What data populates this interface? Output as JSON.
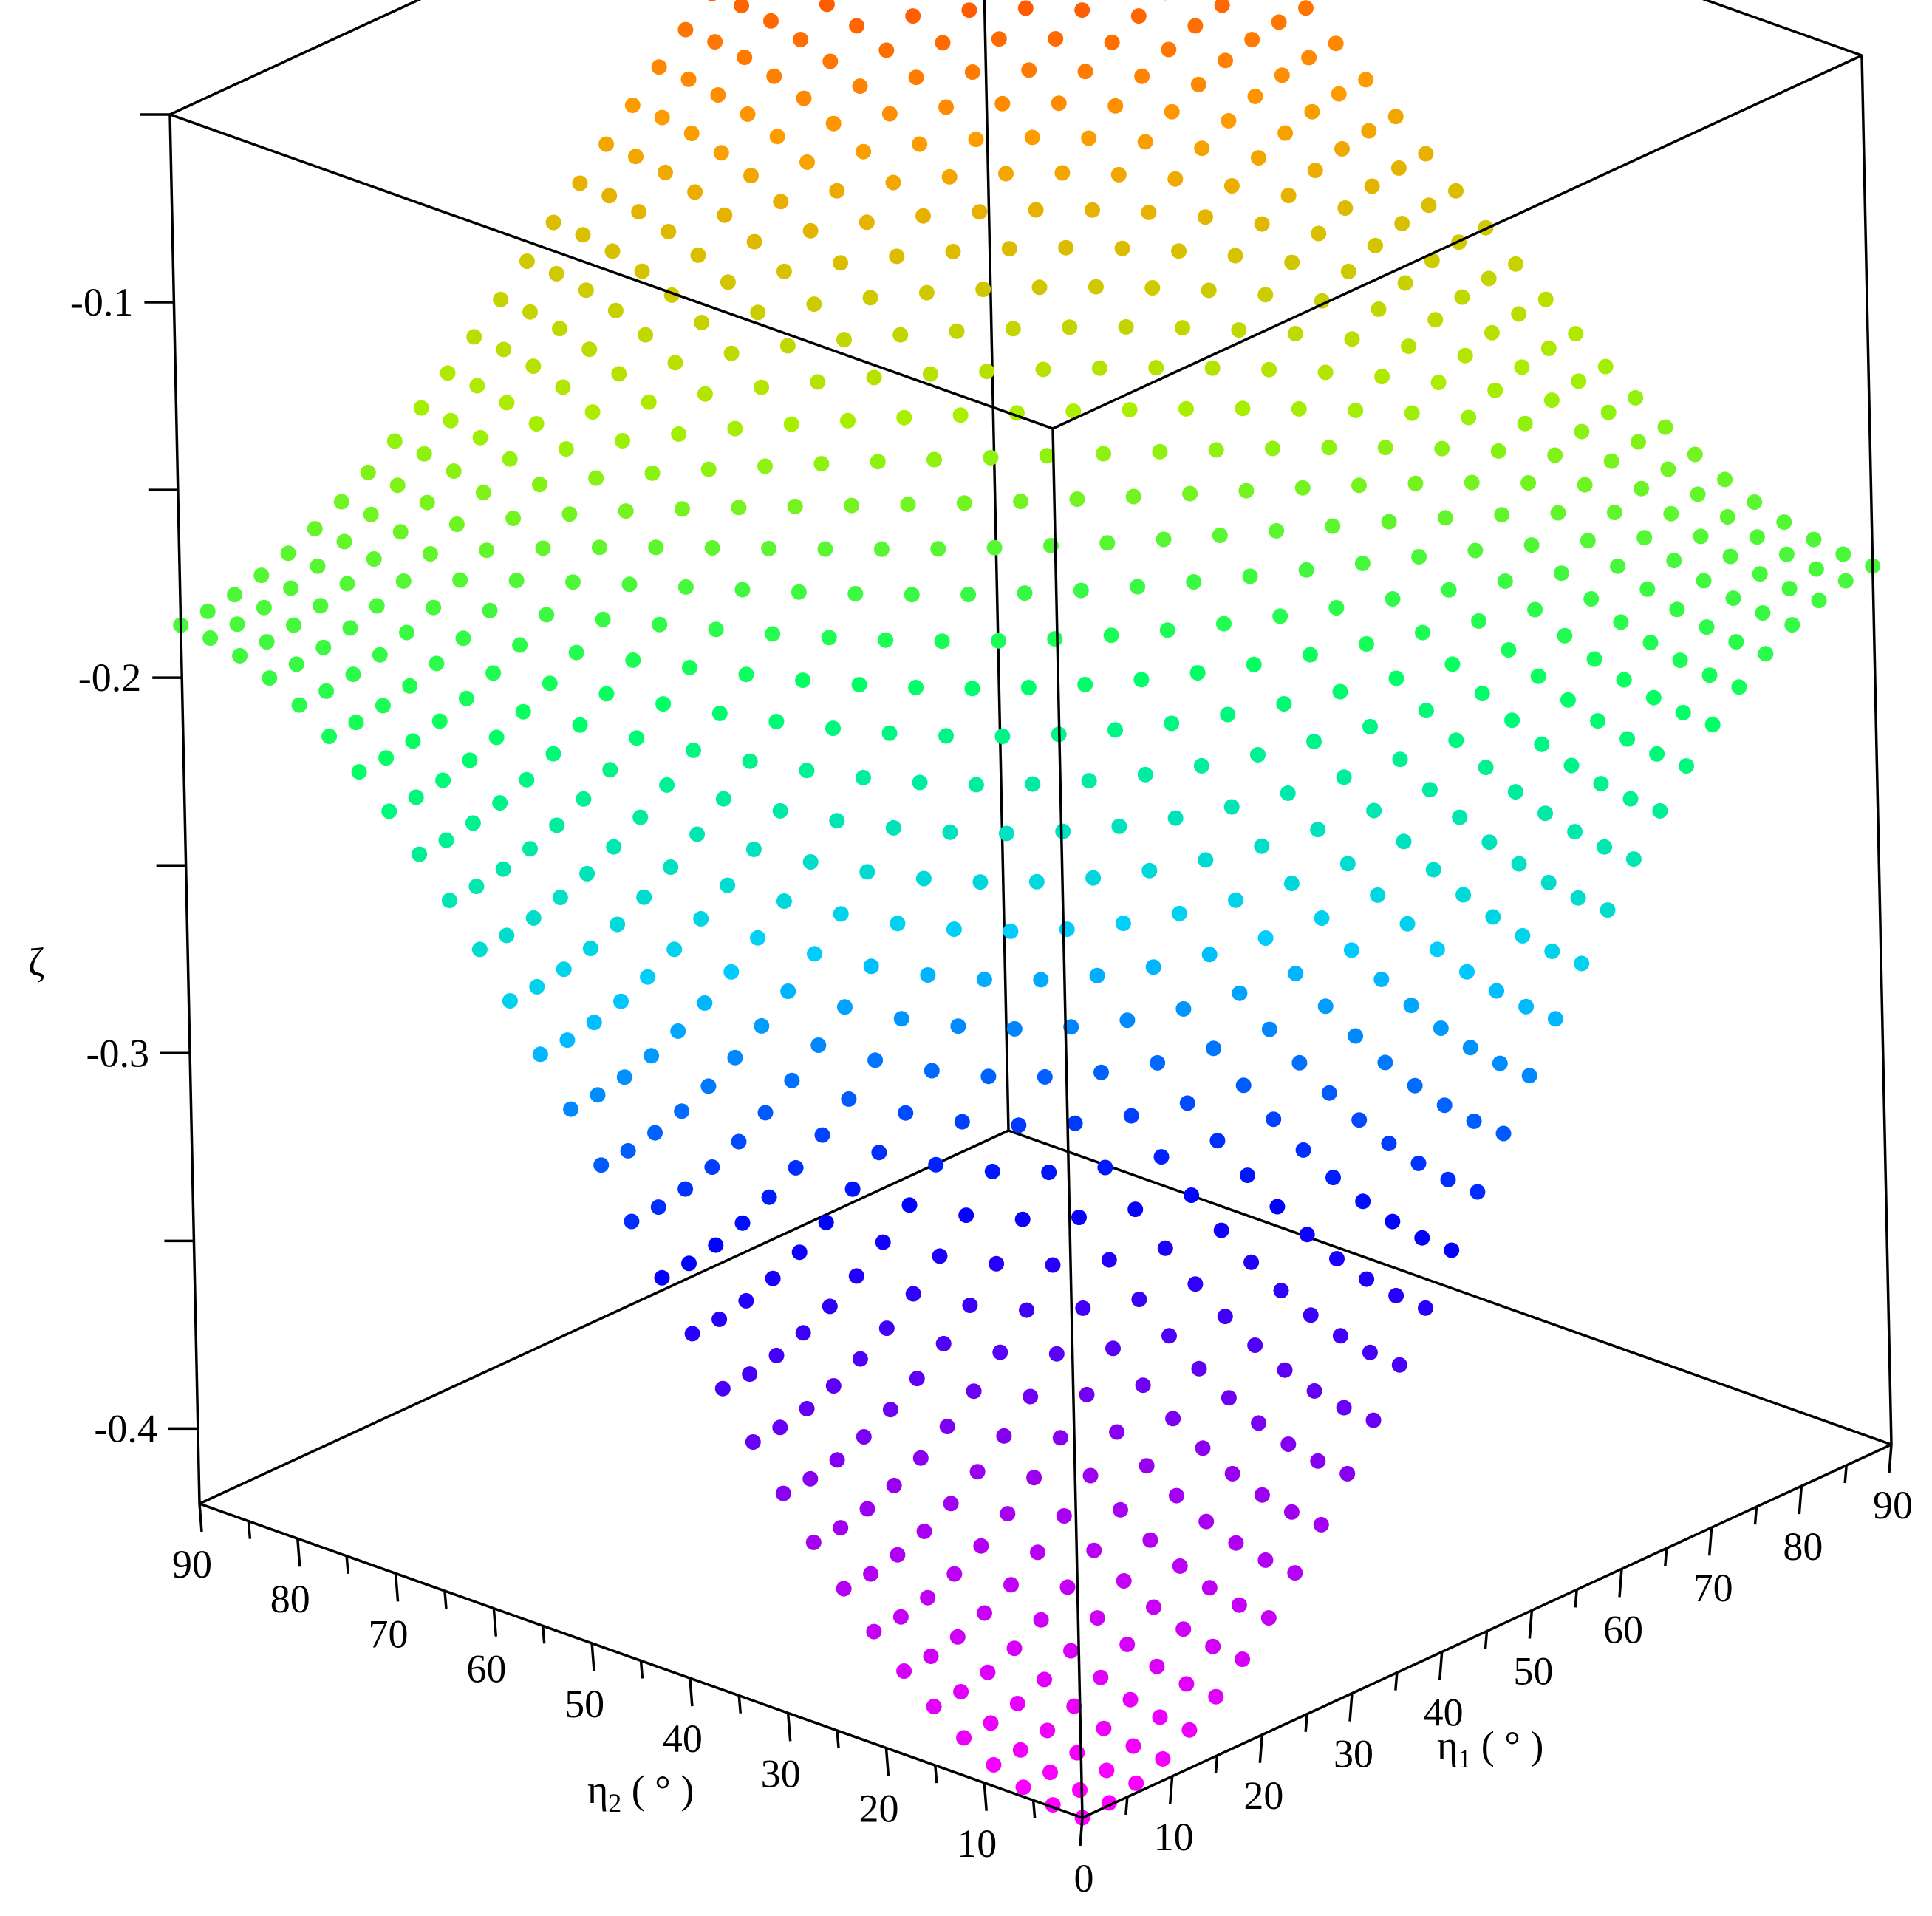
{
  "chart_data": {
    "type": "scatter3d",
    "title": "",
    "axes": {
      "x": {
        "label": "η",
        "label_subscript": "1",
        "label_units": " ( ° )",
        "range": [
          0,
          90
        ],
        "ticks": [
          "0",
          "10",
          "20",
          "30",
          "40",
          "50",
          "60",
          "70",
          "80",
          "90"
        ]
      },
      "y": {
        "label": "η",
        "label_subscript": "2",
        "label_units": " ( ° )",
        "range": [
          0,
          90
        ],
        "ticks": [
          "10",
          "20",
          "30",
          "40",
          "50",
          "60",
          "70",
          "80",
          "90"
        ]
      },
      "z": {
        "label": "ζ",
        "range": [
          -0.42,
          -0.05
        ],
        "ticks": [
          "-0.4",
          "-0.3",
          "-0.2",
          "-0.1"
        ]
      }
    },
    "grid": false,
    "legend": "none",
    "surface": {
      "description_of_values": "zeta at eta1 = eta2 = 0 is -0.42; at eta1 = 90, eta2 = 0 and at eta1 = 0, eta2 = 90 about -0.185; at eta1 = eta2 = 90 about -0.05",
      "grid_step_deg": 3,
      "corner_values": {
        "eta1_0_eta2_0": -0.42,
        "eta1_90_eta2_0": -0.186,
        "eta1_0_eta2_90": -0.186,
        "eta1_90_eta2_90": -0.05
      }
    },
    "colormap": [
      "#ff00ff",
      "#9900ee",
      "#0000ff",
      "#00ccff",
      "#00ff66",
      "#aaee00",
      "#ff9900",
      "#ff0000"
    ]
  }
}
